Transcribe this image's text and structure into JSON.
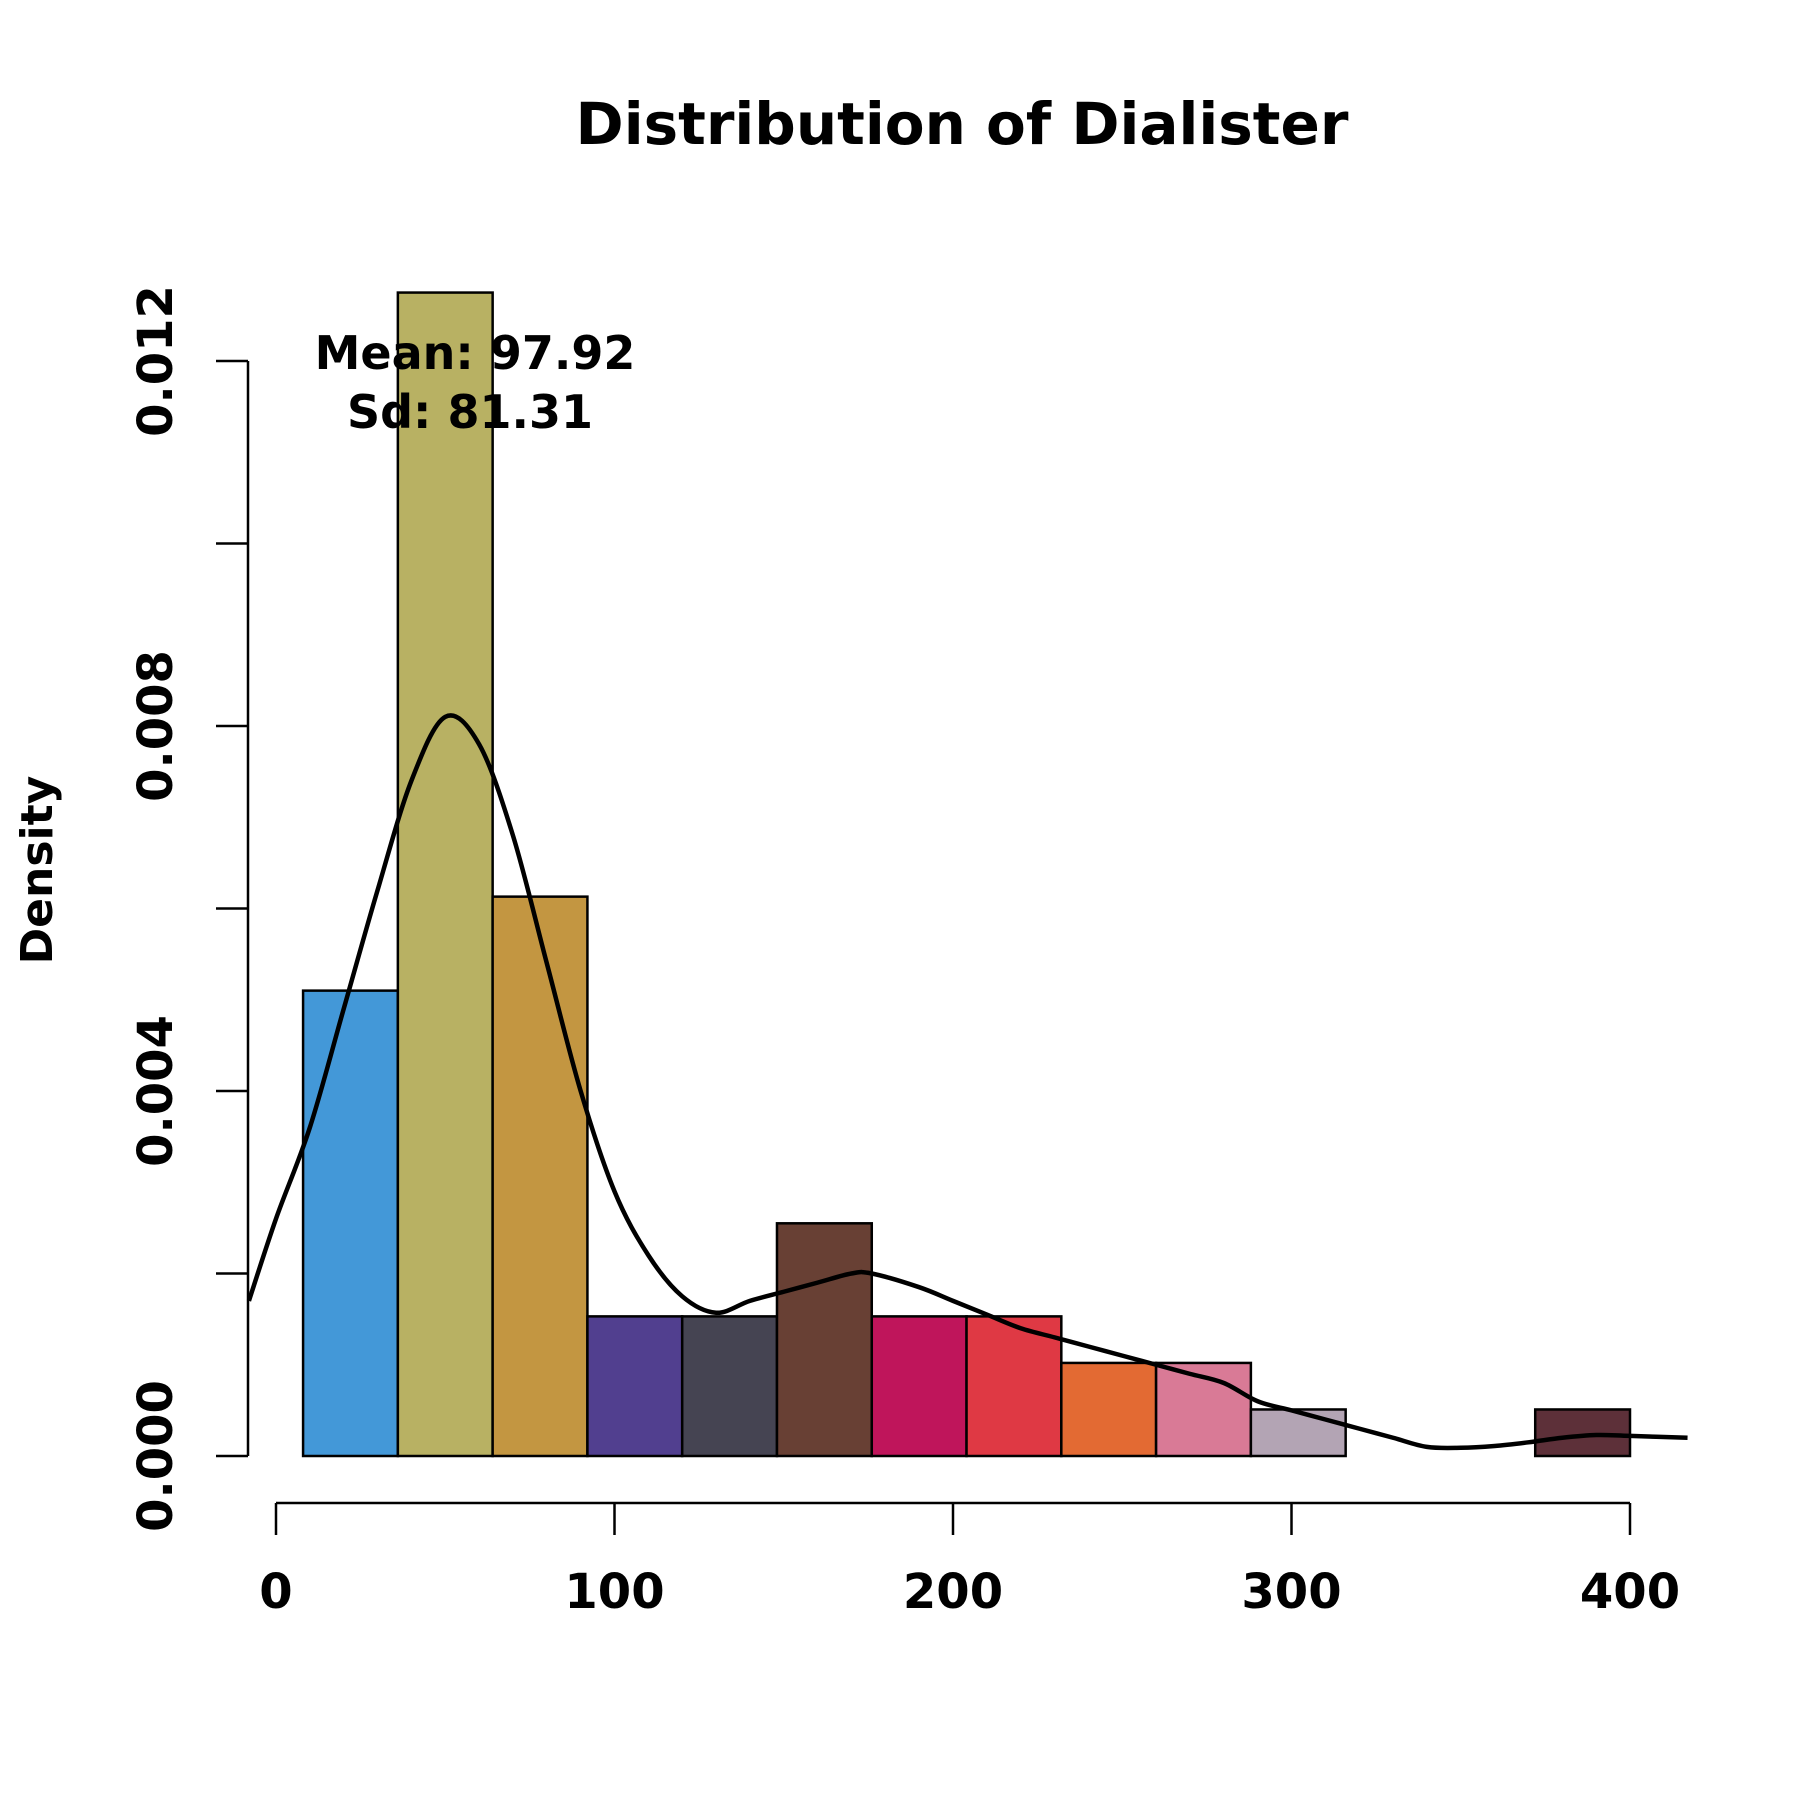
{
  "chart_data": {
    "type": "histogram",
    "title": "Distribution of Dialister",
    "xlabel": "",
    "ylabel": "Density",
    "xlim": [
      -8,
      417
    ],
    "ylim": [
      0,
      0.0128
    ],
    "x_ticks": [
      0,
      100,
      200,
      300,
      400
    ],
    "x_tick_labels": [
      "0",
      "100",
      "200",
      "300",
      "400"
    ],
    "y_ticks": [
      0,
      0.002,
      0.004,
      0.006,
      0.008,
      0.01,
      0.012
    ],
    "y_tick_labels": [
      "0.000",
      "",
      "0.004",
      "",
      "0.008",
      "",
      "0.012"
    ],
    "bins": [
      {
        "x0": 8,
        "x1": 36,
        "density": 0.0051,
        "color": "#4398d8"
      },
      {
        "x0": 36,
        "x1": 64,
        "density": 0.01275,
        "color": "#b8b163"
      },
      {
        "x0": 64,
        "x1": 92,
        "density": 0.00613,
        "color": "#c39641"
      },
      {
        "x0": 92,
        "x1": 120,
        "density": 0.00153,
        "color": "#513f8f"
      },
      {
        "x0": 120,
        "x1": 148,
        "density": 0.00153,
        "color": "#454452"
      },
      {
        "x0": 148,
        "x1": 176,
        "density": 0.00255,
        "color": "#684034"
      },
      {
        "x0": 176,
        "x1": 204,
        "density": 0.00153,
        "color": "#bf155b"
      },
      {
        "x0": 204,
        "x1": 232,
        "density": 0.00153,
        "color": "#df3944"
      },
      {
        "x0": 232,
        "x1": 260,
        "density": 0.00102,
        "color": "#e36a33"
      },
      {
        "x0": 260,
        "x1": 288,
        "density": 0.00102,
        "color": "#d97a96"
      },
      {
        "x0": 288,
        "x1": 316,
        "density": 0.00051,
        "color": "#b3a4b4"
      },
      {
        "x0": 316,
        "x1": 344,
        "density": 0,
        "color": "#ffffff"
      },
      {
        "x0": 344,
        "x1": 372,
        "density": 0,
        "color": "#ffffff"
      },
      {
        "x0": 372,
        "x1": 400,
        "density": 0.00051,
        "color": "#5d3039"
      }
    ],
    "density_curve": {
      "x": [
        -8,
        0,
        10,
        20,
        30,
        40,
        50,
        60,
        70,
        80,
        90,
        100,
        110,
        120,
        130,
        140,
        150,
        160,
        170,
        176,
        190,
        200,
        210,
        220,
        230,
        240,
        250,
        260,
        270,
        280,
        290,
        300,
        310,
        320,
        330,
        340,
        350,
        360,
        370,
        380,
        390,
        400,
        417
      ],
      "y": [
        0.0017,
        0.0026,
        0.0036,
        0.0049,
        0.0062,
        0.0074,
        0.0081,
        0.0078,
        0.0068,
        0.0054,
        0.004,
        0.0029,
        0.0022,
        0.00175,
        0.00157,
        0.0017,
        0.0018,
        0.0019,
        0.002,
        0.002,
        0.00185,
        0.0017,
        0.00155,
        0.0014,
        0.0013,
        0.0012,
        0.0011,
        0.001,
        0.0009,
        0.0008,
        0.0006,
        0.0005,
        0.0004,
        0.0003,
        0.0002,
        0.0001,
        9e-05,
        0.00011,
        0.00015,
        0.0002,
        0.00023,
        0.00022,
        0.0002
      ]
    },
    "annotations": [
      "Mean: 97.92",
      "Sd: 81.31"
    ],
    "grid": false
  }
}
